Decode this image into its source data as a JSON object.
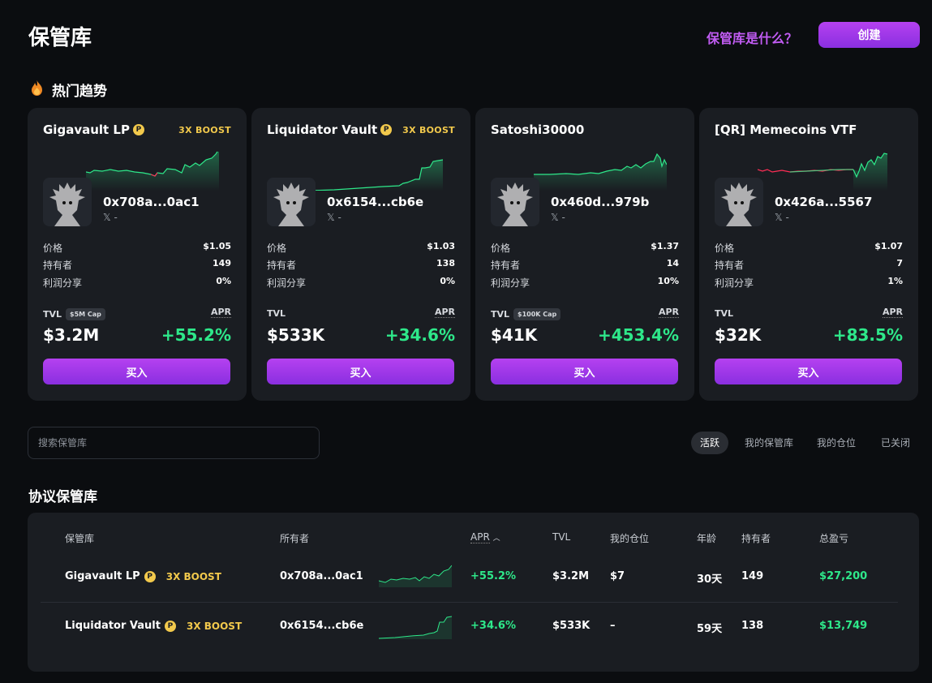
{
  "header": {
    "title": "保管库",
    "what_link": "保管库是什么？",
    "create_label": "创建"
  },
  "trending": {
    "title": "热门趋势",
    "cards": [
      {
        "name": "Gigavault LP",
        "verified": true,
        "boost": "3X BOOST",
        "owner": "0x708a...0ac1",
        "social": "𝕏 -",
        "price_label": "价格",
        "price": "$1.05",
        "holders_label": "持有者",
        "holders": "149",
        "profit_label": "利润分享",
        "profit": "0%",
        "tvl_label": "TVL",
        "cap": "$5M Cap",
        "apr_label": "APR",
        "tvl": "$3.2M",
        "apr": "+55.2%",
        "buy_label": "买入"
      },
      {
        "name": "Liquidator Vault",
        "verified": true,
        "boost": "3X BOOST",
        "owner": "0x6154...cb6e",
        "social": "𝕏 -",
        "price_label": "价格",
        "price": "$1.03",
        "holders_label": "持有者",
        "holders": "138",
        "profit_label": "利润分享",
        "profit": "0%",
        "tvl_label": "TVL",
        "cap": "",
        "apr_label": "APR",
        "tvl": "$533K",
        "apr": "+34.6%",
        "buy_label": "买入"
      },
      {
        "name": "Satoshi30000",
        "verified": false,
        "boost": "",
        "owner": "0x460d...979b",
        "social": "𝕏 -",
        "price_label": "价格",
        "price": "$1.37",
        "holders_label": "持有者",
        "holders": "14",
        "profit_label": "利润分享",
        "profit": "10%",
        "tvl_label": "TVL",
        "cap": "$100K Cap",
        "apr_label": "APR",
        "tvl": "$41K",
        "apr": "+453.4%",
        "buy_label": "买入"
      },
      {
        "name": "[QR] Memecoins VTF",
        "verified": false,
        "boost": "",
        "owner": "0x426a...5567",
        "social": "𝕏 -",
        "price_label": "价格",
        "price": "$1.07",
        "holders_label": "持有者",
        "holders": "7",
        "profit_label": "利润分享",
        "profit": "1%",
        "tvl_label": "TVL",
        "cap": "",
        "apr_label": "APR",
        "tvl": "$32K",
        "apr": "+83.5%",
        "buy_label": "买入"
      }
    ]
  },
  "search": {
    "placeholder": "搜索保管库"
  },
  "filters": {
    "active": "活跃",
    "mine": "我的保管库",
    "position": "我的仓位",
    "closed": "已关闭"
  },
  "protocol": {
    "title": "协议保管库",
    "headers": {
      "vault": "保管库",
      "owner": "所有者",
      "apr": "APR",
      "tvl": "TVL",
      "position": "我的仓位",
      "age": "年龄",
      "holders": "持有者",
      "pnl": "总盈亏"
    },
    "rows": [
      {
        "name": "Gigavault LP",
        "boost": "3X BOOST",
        "owner": "0x708a...0ac1",
        "apr": "+55.2%",
        "tvl": "$3.2M",
        "position": "$7",
        "age": "30天",
        "holders": "149",
        "pnl": "$27,200"
      },
      {
        "name": "Liquidator Vault",
        "boost": "3X BOOST",
        "owner": "0x6154...cb6e",
        "apr": "+34.6%",
        "tvl": "$533K",
        "position": "–",
        "age": "59天",
        "holders": "138",
        "pnl": "$13,749"
      }
    ]
  },
  "colors": {
    "accent": "#b541f0",
    "positive": "#2ee88a",
    "negative": "#ff2d55",
    "boost": "#f2c94c",
    "card_bg": "#1a1d22",
    "page_bg": "#0b0d10"
  }
}
